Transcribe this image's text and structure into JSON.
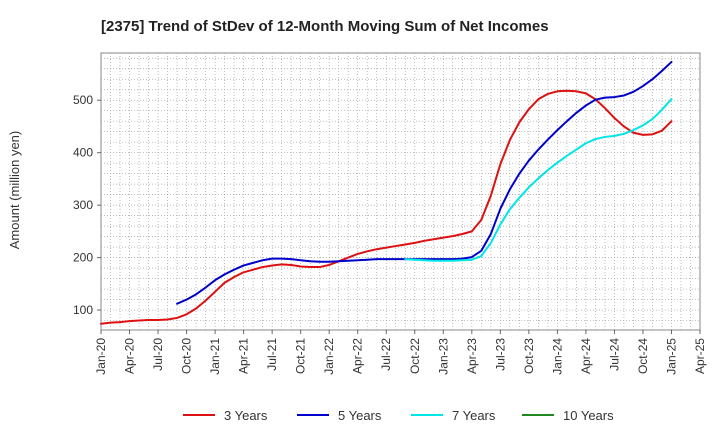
{
  "chart_data": {
    "type": "line",
    "title": "[2375]  Trend of StDev of 12-Month Moving Sum of Net Incomes",
    "xlabel": "",
    "ylabel": "Amount (million yen)",
    "x_ticks": [
      "Jan-20",
      "Apr-20",
      "Jul-20",
      "Oct-20",
      "Jan-21",
      "Apr-21",
      "Jul-21",
      "Oct-21",
      "Jan-22",
      "Apr-22",
      "Jul-22",
      "Oct-22",
      "Jan-23",
      "Apr-23",
      "Jul-23",
      "Oct-23",
      "Jan-24",
      "Apr-24",
      "Jul-24",
      "Oct-24",
      "Jan-25",
      "Apr-25"
    ],
    "y_ticks": [
      100,
      200,
      300,
      400,
      500
    ],
    "ylim": [
      62,
      590
    ],
    "grid": true,
    "legend_position": "bottom",
    "series": [
      {
        "name": "3 Years",
        "color": "#dd1111",
        "points": [
          [
            "Jan-20",
            74
          ],
          [
            "Feb-20",
            76
          ],
          [
            "Mar-20",
            77
          ],
          [
            "Apr-20",
            79
          ],
          [
            "May-20",
            80
          ],
          [
            "Jun-20",
            81
          ],
          [
            "Jul-20",
            81
          ],
          [
            "Aug-20",
            82
          ],
          [
            "Sep-20",
            85
          ],
          [
            "Oct-20",
            92
          ],
          [
            "Nov-20",
            103
          ],
          [
            "Dec-20",
            118
          ],
          [
            "Jan-21",
            135
          ],
          [
            "Feb-21",
            152
          ],
          [
            "Mar-21",
            163
          ],
          [
            "Apr-21",
            172
          ],
          [
            "May-21",
            177
          ],
          [
            "Jun-21",
            182
          ],
          [
            "Jul-21",
            185
          ],
          [
            "Aug-21",
            187
          ],
          [
            "Sep-21",
            186
          ],
          [
            "Oct-21",
            183
          ],
          [
            "Nov-21",
            182
          ],
          [
            "Dec-21",
            182
          ],
          [
            "Jan-22",
            186
          ],
          [
            "Feb-22",
            193
          ],
          [
            "Mar-22",
            200
          ],
          [
            "Apr-22",
            207
          ],
          [
            "May-22",
            212
          ],
          [
            "Jun-22",
            216
          ],
          [
            "Jul-22",
            219
          ],
          [
            "Aug-22",
            222
          ],
          [
            "Sep-22",
            225
          ],
          [
            "Oct-22",
            228
          ],
          [
            "Nov-22",
            232
          ],
          [
            "Dec-22",
            235
          ],
          [
            "Jan-23",
            238
          ],
          [
            "Feb-23",
            241
          ],
          [
            "Mar-23",
            245
          ],
          [
            "Apr-23",
            250
          ],
          [
            "May-23",
            272
          ],
          [
            "Jun-23",
            318
          ],
          [
            "Jul-23",
            378
          ],
          [
            "Aug-23",
            424
          ],
          [
            "Sep-23",
            458
          ],
          [
            "Oct-23",
            483
          ],
          [
            "Nov-23",
            502
          ],
          [
            "Dec-23",
            512
          ],
          [
            "Jan-24",
            517
          ],
          [
            "Feb-24",
            518
          ],
          [
            "Mar-24",
            517
          ],
          [
            "Apr-24",
            513
          ],
          [
            "May-24",
            502
          ],
          [
            "Jun-24",
            485
          ],
          [
            "Jul-24",
            466
          ],
          [
            "Aug-24",
            450
          ],
          [
            "Sep-24",
            438
          ],
          [
            "Oct-24",
            434
          ],
          [
            "Nov-24",
            435
          ],
          [
            "Dec-24",
            442
          ],
          [
            "Jan-25",
            460
          ]
        ]
      },
      {
        "name": "5 Years",
        "color": "#0000cc",
        "points": [
          [
            "Sep-20",
            112
          ],
          [
            "Oct-20",
            120
          ],
          [
            "Nov-20",
            130
          ],
          [
            "Dec-20",
            143
          ],
          [
            "Jan-21",
            157
          ],
          [
            "Feb-21",
            168
          ],
          [
            "Mar-21",
            177
          ],
          [
            "Apr-21",
            185
          ],
          [
            "May-21",
            190
          ],
          [
            "Jun-21",
            195
          ],
          [
            "Jul-21",
            198
          ],
          [
            "Aug-21",
            198
          ],
          [
            "Sep-21",
            197
          ],
          [
            "Oct-21",
            195
          ],
          [
            "Nov-21",
            193
          ],
          [
            "Dec-21",
            192
          ],
          [
            "Jan-22",
            192
          ],
          [
            "Feb-22",
            193
          ],
          [
            "Mar-22",
            194
          ],
          [
            "Apr-22",
            195
          ],
          [
            "May-22",
            196
          ],
          [
            "Jun-22",
            197
          ],
          [
            "Jul-22",
            197
          ],
          [
            "Aug-22",
            197
          ],
          [
            "Sep-22",
            197
          ],
          [
            "Oct-22",
            197
          ],
          [
            "Nov-22",
            197
          ],
          [
            "Dec-22",
            197
          ],
          [
            "Jan-23",
            197
          ],
          [
            "Feb-23",
            197
          ],
          [
            "Mar-23",
            198
          ],
          [
            "Apr-23",
            201
          ],
          [
            "May-23",
            213
          ],
          [
            "Jun-23",
            245
          ],
          [
            "Jul-23",
            293
          ],
          [
            "Aug-23",
            330
          ],
          [
            "Sep-23",
            360
          ],
          [
            "Oct-23",
            385
          ],
          [
            "Nov-23",
            406
          ],
          [
            "Dec-23",
            425
          ],
          [
            "Jan-24",
            443
          ],
          [
            "Feb-24",
            460
          ],
          [
            "Mar-24",
            476
          ],
          [
            "Apr-24",
            490
          ],
          [
            "May-24",
            501
          ],
          [
            "Jun-24",
            505
          ],
          [
            "Jul-24",
            506
          ],
          [
            "Aug-24",
            509
          ],
          [
            "Sep-24",
            516
          ],
          [
            "Oct-24",
            527
          ],
          [
            "Nov-24",
            540
          ],
          [
            "Dec-24",
            556
          ],
          [
            "Jan-25",
            573
          ]
        ]
      },
      {
        "name": "7 Years",
        "color": "#00e5e5",
        "points": [
          [
            "Sep-22",
            197
          ],
          [
            "Oct-22",
            196
          ],
          [
            "Nov-22",
            195
          ],
          [
            "Dec-22",
            194
          ],
          [
            "Jan-23",
            194
          ],
          [
            "Feb-23",
            194
          ],
          [
            "Mar-23",
            195
          ],
          [
            "Apr-23",
            196
          ],
          [
            "May-23",
            203
          ],
          [
            "Jun-23",
            228
          ],
          [
            "Jul-23",
            263
          ],
          [
            "Aug-23",
            292
          ],
          [
            "Sep-23",
            314
          ],
          [
            "Oct-23",
            334
          ],
          [
            "Nov-23",
            351
          ],
          [
            "Dec-23",
            367
          ],
          [
            "Jan-24",
            381
          ],
          [
            "Feb-24",
            394
          ],
          [
            "Mar-24",
            406
          ],
          [
            "Apr-24",
            418
          ],
          [
            "May-24",
            426
          ],
          [
            "Jun-24",
            430
          ],
          [
            "Jul-24",
            432
          ],
          [
            "Aug-24",
            436
          ],
          [
            "Sep-24",
            443
          ],
          [
            "Oct-24",
            452
          ],
          [
            "Nov-24",
            464
          ],
          [
            "Dec-24",
            482
          ],
          [
            "Jan-25",
            502
          ]
        ]
      },
      {
        "name": "10 Years",
        "color": "#228822",
        "points": []
      }
    ]
  }
}
